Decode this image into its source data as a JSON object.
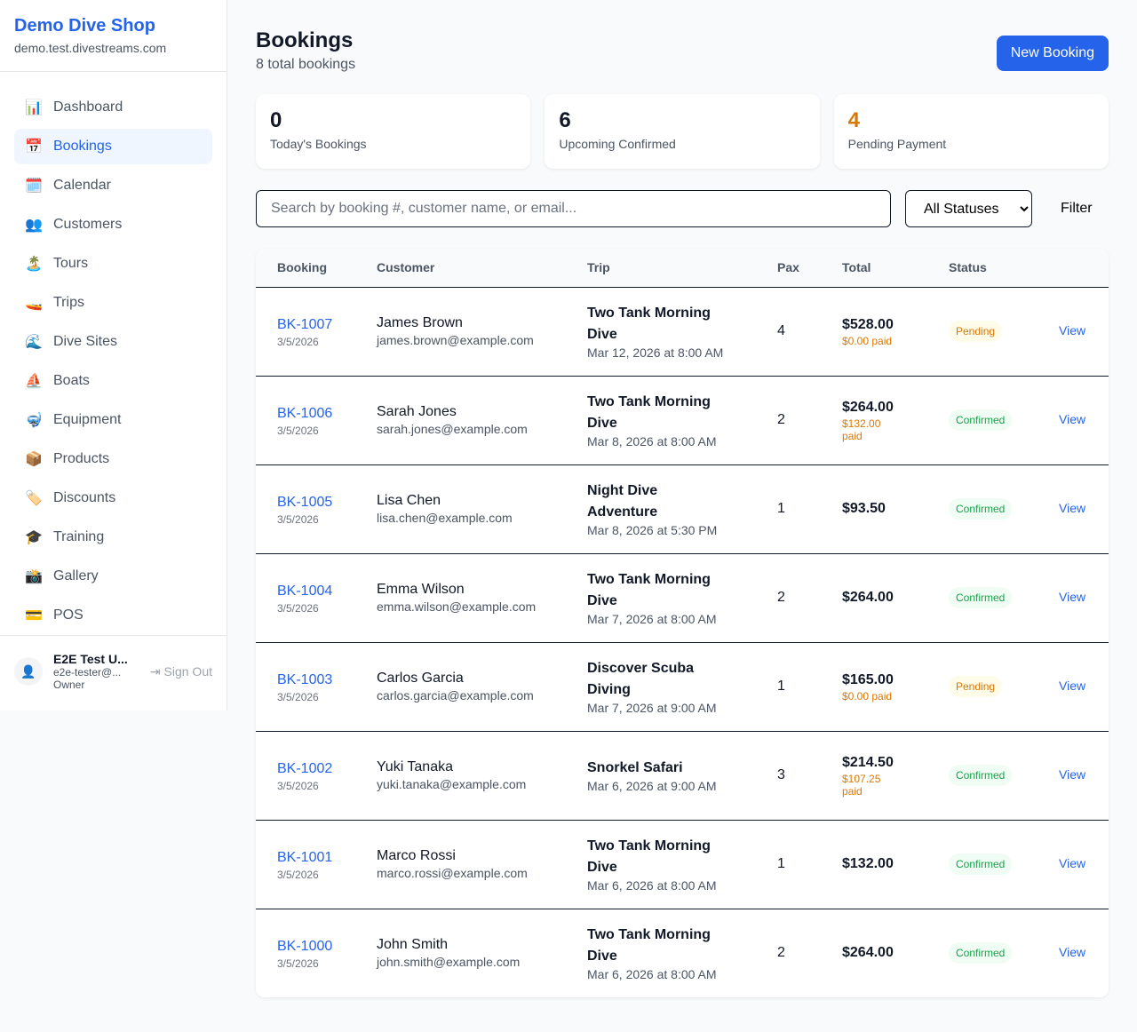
{
  "sidebar": {
    "brand": "Demo Dive Shop",
    "domain": "demo.test.divestreams.com",
    "items": [
      {
        "label": "Dashboard",
        "icon": "📊"
      },
      {
        "label": "Bookings",
        "icon": "📅",
        "active": true
      },
      {
        "label": "Calendar",
        "icon": "🗓️"
      },
      {
        "label": "Customers",
        "icon": "👥"
      },
      {
        "label": "Tours",
        "icon": "🏝️"
      },
      {
        "label": "Trips",
        "icon": "🚤"
      },
      {
        "label": "Dive Sites",
        "icon": "🌊"
      },
      {
        "label": "Boats",
        "icon": "⛵"
      },
      {
        "label": "Equipment",
        "icon": "🤿"
      },
      {
        "label": "Products",
        "icon": "📦"
      },
      {
        "label": "Discounts",
        "icon": "🏷️"
      },
      {
        "label": "Training",
        "icon": "🎓"
      },
      {
        "label": "Gallery",
        "icon": "📸"
      },
      {
        "label": "POS",
        "icon": "💳"
      }
    ],
    "user": {
      "name": "E2E Test U...",
      "email": "e2e-tester@...",
      "role": "Owner",
      "sign_out": "Sign Out"
    }
  },
  "header": {
    "title": "Bookings",
    "subtitle": "8 total bookings",
    "new_booking": "New Booking"
  },
  "stats": [
    {
      "value": "0",
      "label": "Today's Bookings",
      "color": "#111827"
    },
    {
      "value": "6",
      "label": "Upcoming Confirmed",
      "color": "#111827"
    },
    {
      "value": "4",
      "label": "Pending Payment",
      "color": "#d97706"
    }
  ],
  "filters": {
    "search_placeholder": "Search by booking #, customer name, or email...",
    "status": "All Statuses",
    "filter": "Filter"
  },
  "table": {
    "headers": [
      "Booking",
      "Customer",
      "Trip",
      "Pax",
      "Total",
      "Status",
      ""
    ],
    "rows": [
      {
        "id": "BK-1007",
        "date": "3/5/2026",
        "name": "James Brown",
        "email": "james.brown@example.com",
        "trip": "Two Tank Morning Dive",
        "when": "Mar 12, 2026 at 8:00 AM",
        "pax": "4",
        "total": "$528.00",
        "paid": "$0.00 paid",
        "status": "Pending",
        "action": "View"
      },
      {
        "id": "BK-1006",
        "date": "3/5/2026",
        "name": "Sarah Jones",
        "email": "sarah.jones@example.com",
        "trip": "Two Tank Morning Dive",
        "when": "Mar 8, 2026 at 8:00 AM",
        "pax": "2",
        "total": "$264.00",
        "paid": "$132.00 paid",
        "status": "Confirmed",
        "action": "View"
      },
      {
        "id": "BK-1005",
        "date": "3/5/2026",
        "name": "Lisa Chen",
        "email": "lisa.chen@example.com",
        "trip": "Night Dive Adventure",
        "when": "Mar 8, 2026 at 5:30 PM",
        "pax": "1",
        "total": "$93.50",
        "paid": "",
        "status": "Confirmed",
        "action": "View"
      },
      {
        "id": "BK-1004",
        "date": "3/5/2026",
        "name": "Emma Wilson",
        "email": "emma.wilson@example.com",
        "trip": "Two Tank Morning Dive",
        "when": "Mar 7, 2026 at 8:00 AM",
        "pax": "2",
        "total": "$264.00",
        "paid": "",
        "status": "Confirmed",
        "action": "View"
      },
      {
        "id": "BK-1003",
        "date": "3/5/2026",
        "name": "Carlos Garcia",
        "email": "carlos.garcia@example.com",
        "trip": "Discover Scuba Diving",
        "when": "Mar 7, 2026 at 9:00 AM",
        "pax": "1",
        "total": "$165.00",
        "paid": "$0.00 paid",
        "status": "Pending",
        "action": "View"
      },
      {
        "id": "BK-1002",
        "date": "3/5/2026",
        "name": "Yuki Tanaka",
        "email": "yuki.tanaka@example.com",
        "trip": "Snorkel Safari",
        "when": "Mar 6, 2026 at 9:00 AM",
        "pax": "3",
        "total": "$214.50",
        "paid": "$107.25 paid",
        "status": "Confirmed",
        "action": "View"
      },
      {
        "id": "BK-1001",
        "date": "3/5/2026",
        "name": "Marco Rossi",
        "email": "marco.rossi@example.com",
        "trip": "Two Tank Morning Dive",
        "when": "Mar 6, 2026 at 8:00 AM",
        "pax": "1",
        "total": "$132.00",
        "paid": "",
        "status": "Confirmed",
        "action": "View"
      },
      {
        "id": "BK-1000",
        "date": "3/5/2026",
        "name": "John Smith",
        "email": "john.smith@example.com",
        "trip": "Two Tank Morning Dive",
        "when": "Mar 6, 2026 at 8:00 AM",
        "pax": "2",
        "total": "$264.00",
        "paid": "",
        "status": "Confirmed",
        "action": "View"
      }
    ]
  }
}
